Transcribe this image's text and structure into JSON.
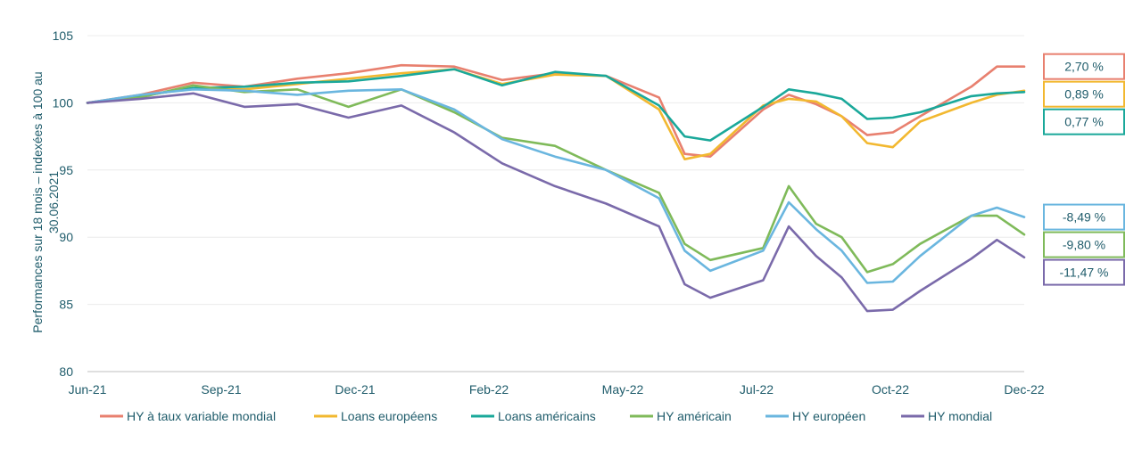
{
  "chart_data": {
    "type": "line",
    "ylabel_line1": "Performances sur 18 mois  – indexées à 100 au",
    "ylabel_line2": "30.06.2021",
    "ylim": [
      80,
      105
    ],
    "yticks": [
      80,
      85,
      90,
      95,
      100,
      105
    ],
    "grid": true,
    "legend_position": "bottom",
    "x_ticks": [
      "Jun-21",
      "Sep-21",
      "Dec-21",
      "Feb-22",
      "May-22",
      "Jul-22",
      "Oct-22",
      "Dec-22"
    ],
    "x_domain": [
      "2021-06-30",
      "2022-12-31"
    ],
    "x": [
      "2021-06-30",
      "2021-07-31",
      "2021-08-31",
      "2021-09-30",
      "2021-10-31",
      "2021-11-30",
      "2021-12-31",
      "2022-01-31",
      "2022-02-28",
      "2022-03-31",
      "2022-04-30",
      "2022-05-31",
      "2022-06-15",
      "2022-06-30",
      "2022-07-31",
      "2022-08-15",
      "2022-08-31",
      "2022-09-15",
      "2022-09-30",
      "2022-10-15",
      "2022-10-31",
      "2022-11-30",
      "2022-12-15",
      "2022-12-31"
    ],
    "series": [
      {
        "name": "HY à taux variable mondial",
        "color": "#e8806f",
        "end_label": "2,70 %",
        "values": [
          100,
          100.6,
          101.5,
          101.2,
          101.8,
          102.2,
          102.8,
          102.7,
          101.7,
          102.2,
          102.0,
          100.4,
          96.2,
          96.0,
          99.5,
          100.6,
          99.9,
          99.0,
          97.6,
          97.8,
          99.0,
          101.2,
          102.7,
          102.7
        ]
      },
      {
        "name": "Loans européens",
        "color": "#f2b830",
        "end_label": "0,89 %",
        "values": [
          100,
          100.5,
          101.1,
          101.0,
          101.4,
          101.8,
          102.2,
          102.5,
          101.4,
          102.1,
          102.0,
          99.5,
          95.8,
          96.2,
          99.8,
          100.3,
          100.1,
          99.0,
          97.0,
          96.7,
          98.6,
          100.0,
          100.6,
          100.9
        ]
      },
      {
        "name": "Loans américains",
        "color": "#1aa89a",
        "end_label": "0,77 %",
        "values": [
          100,
          100.5,
          101.1,
          101.2,
          101.5,
          101.6,
          102.0,
          102.5,
          101.3,
          102.3,
          102.0,
          99.8,
          97.5,
          97.2,
          99.7,
          101.0,
          100.7,
          100.3,
          98.8,
          98.9,
          99.3,
          100.5,
          100.7,
          100.8
        ]
      },
      {
        "name": "HY américain",
        "color": "#7fba5a",
        "end_label": "-9,80 %",
        "values": [
          100,
          100.4,
          101.3,
          100.8,
          101.0,
          99.7,
          101.0,
          99.3,
          97.4,
          96.8,
          95.0,
          93.3,
          89.5,
          88.3,
          89.2,
          93.8,
          91.0,
          90.0,
          87.4,
          88.0,
          89.5,
          91.6,
          91.6,
          90.2
        ]
      },
      {
        "name": "HY européen",
        "color": "#6ab6df",
        "end_label": "-8,49 %",
        "values": [
          100,
          100.6,
          101.0,
          100.9,
          100.6,
          100.9,
          101.0,
          99.5,
          97.3,
          96.0,
          95.0,
          92.9,
          89.0,
          87.5,
          89.0,
          92.6,
          90.6,
          89.0,
          86.6,
          86.7,
          88.6,
          91.6,
          92.2,
          91.5
        ]
      },
      {
        "name": "HY mondial",
        "color": "#7a6aaa",
        "end_label": "-11,47 %",
        "values": [
          100,
          100.3,
          100.7,
          99.7,
          99.9,
          98.9,
          99.8,
          97.8,
          95.5,
          93.8,
          92.5,
          90.8,
          86.5,
          85.5,
          86.8,
          90.8,
          88.6,
          87.0,
          84.5,
          84.6,
          86.0,
          88.4,
          89.8,
          88.5
        ]
      }
    ]
  }
}
